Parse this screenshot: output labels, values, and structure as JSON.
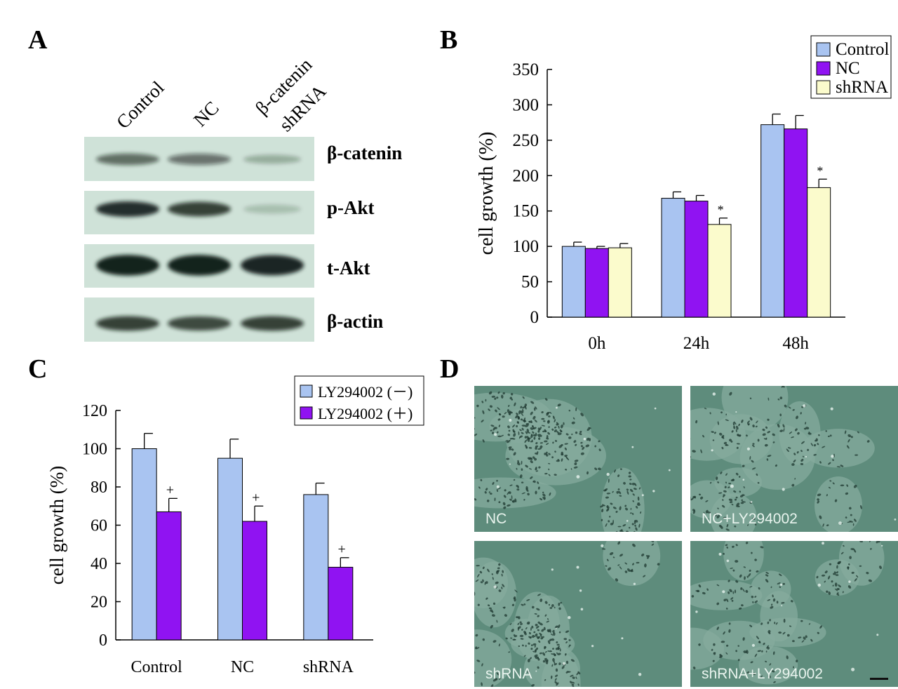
{
  "figure": {
    "panels": {
      "a": "A",
      "b": "B",
      "c": "C",
      "d": "D"
    }
  },
  "panel_a": {
    "lanes": [
      {
        "line1": "Control"
      },
      {
        "line1": "NC"
      },
      {
        "line1": "β-catenin",
        "line2": "shRNA"
      }
    ],
    "blots": [
      {
        "label": "β-catenin",
        "intensity": [
          0.55,
          0.5,
          0.18
        ]
      },
      {
        "label": "p-Akt",
        "intensity": [
          0.9,
          0.8,
          0.08
        ]
      },
      {
        "label": "t-Akt",
        "intensity": [
          1.0,
          1.0,
          0.95
        ]
      },
      {
        "label": "β-actin",
        "intensity": [
          0.8,
          0.75,
          0.8
        ]
      }
    ]
  },
  "chart_data": [
    {
      "type": "bar",
      "panel": "B",
      "ylabel": "cell growth (%)",
      "xlabel": "",
      "categories": [
        "0h",
        "24h",
        "48h"
      ],
      "ylim": [
        0,
        350
      ],
      "yticks": [
        0,
        50,
        100,
        150,
        200,
        250,
        300,
        350
      ],
      "series": [
        {
          "name": "Control",
          "color": "#a9c4f1",
          "values": [
            100,
            168,
            272
          ],
          "errors": [
            6,
            9,
            15
          ]
        },
        {
          "name": "NC",
          "color": "#9013f2",
          "values": [
            97,
            164,
            266
          ],
          "errors": [
            3,
            8,
            19
          ]
        },
        {
          "name": "shRNA",
          "color": "#fbfbcc",
          "values": [
            98,
            131,
            183
          ],
          "errors": [
            6,
            9,
            12
          ]
        }
      ],
      "annotations": [
        {
          "category": "24h",
          "series": "shRNA",
          "text": "*"
        },
        {
          "category": "48h",
          "series": "shRNA",
          "text": "*"
        }
      ],
      "legend": "top-right",
      "grid": false
    },
    {
      "type": "bar",
      "panel": "C",
      "ylabel": "cell growth (%)",
      "xlabel": "",
      "categories": [
        "Control",
        "NC",
        "shRNA"
      ],
      "ylim": [
        0,
        120
      ],
      "yticks": [
        0,
        20,
        40,
        60,
        80,
        100,
        120
      ],
      "series": [
        {
          "name": "LY294002 (－)",
          "color": "#a9c4f1",
          "values": [
            100,
            95,
            76
          ],
          "errors": [
            8,
            10,
            6
          ]
        },
        {
          "name": "LY294002 (＋)",
          "color": "#9013f2",
          "values": [
            67,
            62,
            38
          ],
          "errors": [
            7,
            8,
            5
          ]
        }
      ],
      "annotations": [
        {
          "category": "Control",
          "series": "LY294002 (＋)",
          "text": "+"
        },
        {
          "category": "NC",
          "series": "LY294002 (＋)",
          "text": "+"
        },
        {
          "category": "shRNA",
          "series": "LY294002 (＋)",
          "text": "+"
        }
      ],
      "legend": "top-right",
      "grid": false
    }
  ],
  "panel_d": {
    "images": [
      {
        "label": "NC"
      },
      {
        "label": "NC+LY294002"
      },
      {
        "label": "shRNA"
      },
      {
        "label": "shRNA+LY294002"
      }
    ]
  }
}
